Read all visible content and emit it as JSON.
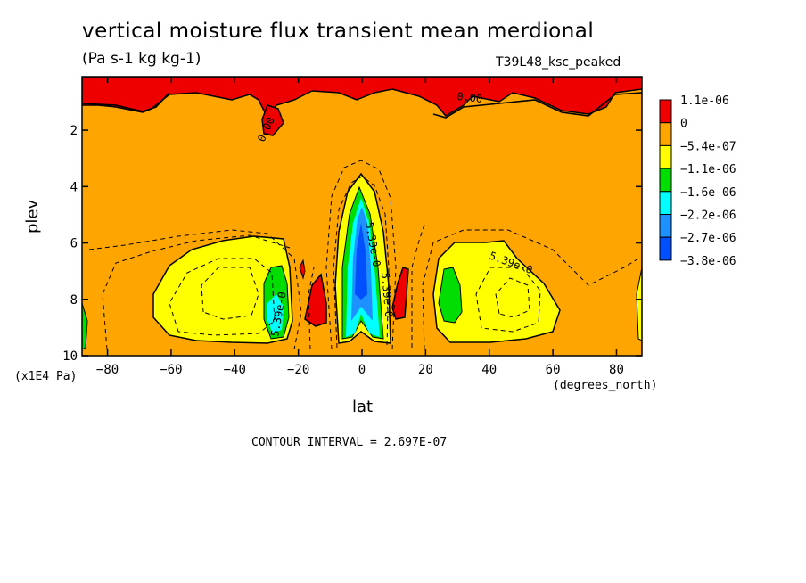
{
  "chart_data": {
    "type": "contour",
    "title": "vertical moisture flux transient mean merdional",
    "units": "(Pa s-1 kg kg-1)",
    "run_label": "T39L48_ksc_peaked",
    "xlabel": "lat",
    "x_units": "(degrees_north)",
    "ylabel": "plev",
    "y_units": "(x1E4 Pa)",
    "xlim": [
      -88,
      88
    ],
    "ylim": [
      10,
      0.1
    ],
    "x_ticks": [
      -80,
      -60,
      -40,
      -20,
      0,
      20,
      40,
      60,
      80
    ],
    "y_ticks": [
      2,
      4,
      6,
      8,
      10
    ],
    "contour_interval_text": "CONTOUR INTERVAL = 2.697E-07",
    "contour_labels": [
      "0.00",
      "0.00",
      "5.39e-0",
      "5.39e-0",
      "5.39e-0",
      "5.39e-0"
    ],
    "legend": {
      "placement": "right",
      "levels": [
        "1.1e-06",
        "0",
        "−5.4e-07",
        "−1.1e-06",
        "−1.6e-06",
        "−2.2e-06",
        "−2.7e-06",
        "−3.8e-06"
      ],
      "colors": [
        "#ee0000",
        "#ffa500",
        "#ffff00",
        "#00dd00",
        "#00ffff",
        "#1e90ff",
        "#0050ff"
      ]
    }
  }
}
